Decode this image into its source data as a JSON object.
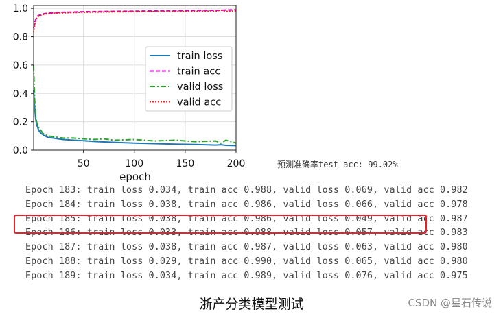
{
  "chart_data": {
    "type": "line",
    "xlabel": "epoch",
    "xlim": [
      1,
      200
    ],
    "ylim": [
      0,
      1.02
    ],
    "xticks": [
      "50",
      "100",
      "150",
      "200"
    ],
    "yticks": [
      "0.0",
      "0.2",
      "0.4",
      "0.6",
      "0.8",
      "1.0"
    ],
    "grid": true,
    "legend_position": "center-right",
    "series": [
      {
        "name": "train loss",
        "color": "#1f77b4",
        "style": "solid",
        "x": [
          1,
          2,
          3,
          4,
          5,
          6,
          8,
          10,
          12,
          15,
          20,
          25,
          30,
          40,
          50,
          60,
          70,
          80,
          100,
          120,
          140,
          160,
          180,
          185,
          190,
          200
        ],
        "y": [
          0.42,
          0.3,
          0.22,
          0.18,
          0.16,
          0.14,
          0.12,
          0.11,
          0.1,
          0.09,
          0.085,
          0.08,
          0.075,
          0.07,
          0.066,
          0.062,
          0.058,
          0.055,
          0.05,
          0.046,
          0.042,
          0.04,
          0.036,
          0.038,
          0.034,
          0.032
        ]
      },
      {
        "name": "train acc",
        "color": "#cc00cc",
        "style": "dashed",
        "x": [
          1,
          2,
          3,
          4,
          5,
          6,
          8,
          10,
          12,
          15,
          20,
          25,
          30,
          40,
          50,
          60,
          70,
          80,
          100,
          120,
          140,
          160,
          180,
          185,
          190,
          200
        ],
        "y": [
          0.86,
          0.9,
          0.92,
          0.935,
          0.945,
          0.95,
          0.955,
          0.96,
          0.963,
          0.966,
          0.968,
          0.97,
          0.972,
          0.974,
          0.976,
          0.977,
          0.978,
          0.979,
          0.98,
          0.982,
          0.983,
          0.984,
          0.986,
          0.986,
          0.988,
          0.99
        ]
      },
      {
        "name": "valid loss",
        "color": "#2ca02c",
        "style": "dashdot",
        "x": [
          1,
          2,
          3,
          4,
          5,
          6,
          8,
          10,
          12,
          15,
          20,
          25,
          30,
          40,
          50,
          60,
          70,
          80,
          100,
          120,
          140,
          160,
          180,
          185,
          190,
          200
        ],
        "y": [
          0.6,
          0.36,
          0.24,
          0.2,
          0.17,
          0.16,
          0.14,
          0.12,
          0.11,
          0.1,
          0.095,
          0.09,
          0.085,
          0.085,
          0.08,
          0.075,
          0.08,
          0.07,
          0.075,
          0.065,
          0.07,
          0.06,
          0.065,
          0.049,
          0.07,
          0.05
        ]
      },
      {
        "name": "valid acc",
        "color": "#ee2222",
        "style": "dotted",
        "x": [
          1,
          2,
          3,
          4,
          5,
          6,
          8,
          10,
          12,
          15,
          20,
          25,
          30,
          40,
          50,
          60,
          70,
          80,
          100,
          120,
          140,
          160,
          180,
          185,
          190,
          200
        ],
        "y": [
          0.83,
          0.88,
          0.91,
          0.93,
          0.94,
          0.945,
          0.95,
          0.955,
          0.96,
          0.962,
          0.965,
          0.967,
          0.968,
          0.97,
          0.972,
          0.973,
          0.974,
          0.975,
          0.976,
          0.977,
          0.978,
          0.979,
          0.98,
          0.987,
          0.978,
          0.982
        ]
      }
    ]
  },
  "test_acc_text": "预测准确率test_acc: 99.02%",
  "log_lines": [
    "Epoch 183: train loss 0.034, train acc 0.988, valid loss 0.069, valid acc 0.982",
    "Epoch 184: train loss 0.038, train acc 0.986, valid loss 0.066, valid acc 0.978",
    "Epoch 185: train loss 0.038, train acc 0.986, valid loss 0.049, valid acc 0.987",
    "Epoch 186: train loss 0.033, train acc 0.988, valid loss 0.057, valid acc 0.983",
    "Epoch 187: train loss 0.038, train acc 0.987, valid loss 0.063, valid acc 0.980",
    "Epoch 188: train loss 0.029, train acc 0.990, valid loss 0.065, valid acc 0.980",
    "Epoch 189: train loss 0.034, train acc 0.989, valid loss 0.076, valid acc 0.975"
  ],
  "caption": "浙产分类模型测试",
  "watermark": "CSDN @星石传说",
  "highlight_color": "#e8222a"
}
